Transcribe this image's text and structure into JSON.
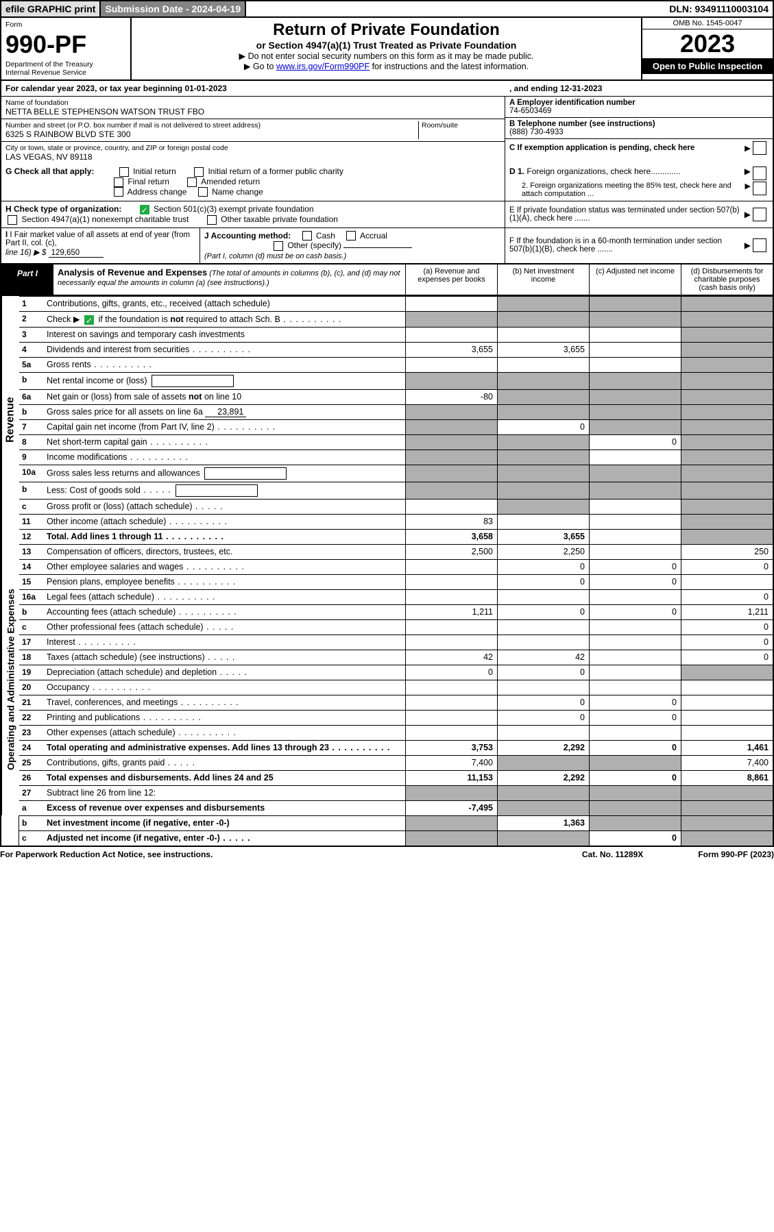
{
  "topbar": {
    "efile": "efile GRAPHIC print",
    "submission": "Submission Date - 2024-04-19",
    "dln": "DLN: 93491110003104"
  },
  "header": {
    "form_word": "Form",
    "form_no": "990-PF",
    "dept": "Department of the Treasury",
    "irs": "Internal Revenue Service",
    "title": "Return of Private Foundation",
    "subtitle": "or Section 4947(a)(1) Trust Treated as Private Foundation",
    "instr1": "▶ Do not enter social security numbers on this form as it may be made public.",
    "instr2_pre": "▶ Go to ",
    "instr2_link": "www.irs.gov/Form990PF",
    "instr2_post": " for instructions and the latest information.",
    "omb": "OMB No. 1545-0047",
    "year": "2023",
    "open": "Open to Public Inspection"
  },
  "calendar": {
    "text_pre": "For calendar year 2023, or tax year beginning ",
    "begin": "01-01-2023",
    "mid": " , and ending ",
    "end": "12-31-2023"
  },
  "foundation": {
    "name_lbl": "Name of foundation",
    "name": "NETTA BELLE STEPHENSON WATSON TRUST FBO",
    "addr_lbl": "Number and street (or P.O. box number if mail is not delivered to street address)",
    "addr": "6325 S RAINBOW BLVD STE 300",
    "room_lbl": "Room/suite",
    "city_lbl": "City or town, state or province, country, and ZIP or foreign postal code",
    "city": "LAS VEGAS, NV  89118",
    "a_lbl": "A Employer identification number",
    "a_val": "74-6503469",
    "b_lbl": "B Telephone number (see instructions)",
    "b_val": "(888) 730-4933",
    "c_lbl": "C If exemption application is pending, check here",
    "d1_lbl": "D 1. Foreign organizations, check here.............",
    "d2_lbl": "2. Foreign organizations meeting the 85% test, check here and attach computation ...",
    "e_lbl": "E  If private foundation status was terminated under section 507(b)(1)(A), check here .......",
    "f_lbl": "F  If the foundation is in a 60-month termination under section 507(b)(1)(B), check here .......",
    "g_lbl": "G Check all that apply:",
    "g_opts": [
      "Initial return",
      "Initial return of a former public charity",
      "Final return",
      "Amended return",
      "Address change",
      "Name change"
    ],
    "h_lbl": "H Check type of organization:",
    "h_opt1": "Section 501(c)(3) exempt private foundation",
    "h_opt2": "Section 4947(a)(1) nonexempt charitable trust",
    "h_opt3": "Other taxable private foundation",
    "i_lbl": "I Fair market value of all assets at end of year (from Part II, col. (c),",
    "i_line": "line 16) ▶ $",
    "i_val": "129,650",
    "j_lbl": "J Accounting method:",
    "j_cash": "Cash",
    "j_accrual": "Accrual",
    "j_other": "Other (specify)",
    "j_note": "(Part I, column (d) must be on cash basis.)"
  },
  "part1": {
    "tab": "Part I",
    "title": "Analysis of Revenue and Expenses",
    "note": " (The total of amounts in columns (b), (c), and (d) may not necessarily equal the amounts in column (a) (see instructions).)",
    "col_a": "(a)   Revenue and expenses per books",
    "col_b": "(b)   Net investment income",
    "col_c": "(c)   Adjusted net income",
    "col_d": "(d)  Disbursements for charitable purposes (cash basis only)"
  },
  "sections": {
    "revenue": "Revenue",
    "expenses": "Operating and Administrative Expenses"
  },
  "rows": [
    {
      "n": "1",
      "lbl": "Contributions, gifts, grants, etc., received (attach schedule)",
      "a": "",
      "b": "g",
      "c": "g",
      "d": "g"
    },
    {
      "n": "2",
      "lbl": "Check ▶ ☑ if the foundation is not required to attach Sch. B",
      "dots": true,
      "a": "g",
      "b": "g",
      "c": "g",
      "d": "g"
    },
    {
      "n": "3",
      "lbl": "Interest on savings and temporary cash investments",
      "a": "",
      "b": "",
      "c": "",
      "d": "g"
    },
    {
      "n": "4",
      "lbl": "Dividends and interest from securities",
      "dots": true,
      "a": "3,655",
      "b": "3,655",
      "c": "",
      "d": "g"
    },
    {
      "n": "5a",
      "lbl": "Gross rents",
      "dots": true,
      "a": "",
      "b": "",
      "c": "",
      "d": "g"
    },
    {
      "n": "b",
      "lbl": "Net rental income or (loss)",
      "box": true,
      "a": "g",
      "b": "g",
      "c": "g",
      "d": "g"
    },
    {
      "n": "6a",
      "lbl": "Net gain or (loss) from sale of assets not on line 10",
      "a": "-80",
      "b": "g",
      "c": "g",
      "d": "g"
    },
    {
      "n": "b",
      "lbl": "Gross sales price for all assets on line 6a",
      "inline": "23,891",
      "a": "g",
      "b": "g",
      "c": "g",
      "d": "g"
    },
    {
      "n": "7",
      "lbl": "Capital gain net income (from Part IV, line 2)",
      "dots": true,
      "a": "g",
      "b": "0",
      "c": "g",
      "d": "g"
    },
    {
      "n": "8",
      "lbl": "Net short-term capital gain",
      "dots": true,
      "a": "g",
      "b": "g",
      "c": "0",
      "d": "g"
    },
    {
      "n": "9",
      "lbl": "Income modifications",
      "dots": true,
      "a": "g",
      "b": "g",
      "c": "",
      "d": "g"
    },
    {
      "n": "10a",
      "lbl": "Gross sales less returns and allowances",
      "box": true,
      "a": "g",
      "b": "g",
      "c": "g",
      "d": "g"
    },
    {
      "n": "b",
      "lbl": "Less: Cost of goods sold",
      "dots5": true,
      "box": true,
      "a": "g",
      "b": "g",
      "c": "g",
      "d": "g"
    },
    {
      "n": "c",
      "lbl": "Gross profit or (loss) (attach schedule)",
      "dots5": true,
      "a": "",
      "b": "g",
      "c": "",
      "d": "g"
    },
    {
      "n": "11",
      "lbl": "Other income (attach schedule)",
      "dots": true,
      "a": "83",
      "b": "",
      "c": "",
      "d": "g"
    },
    {
      "n": "12",
      "lbl": "Total. Add lines 1 through 11",
      "dots": true,
      "bold": true,
      "a": "3,658",
      "b": "3,655",
      "c": "",
      "d": "g"
    },
    {
      "n": "13",
      "lbl": "Compensation of officers, directors, trustees, etc.",
      "a": "2,500",
      "b": "2,250",
      "c": "",
      "d": "250"
    },
    {
      "n": "14",
      "lbl": "Other employee salaries and wages",
      "dots": true,
      "a": "",
      "b": "0",
      "c": "0",
      "d": "0"
    },
    {
      "n": "15",
      "lbl": "Pension plans, employee benefits",
      "dots": true,
      "a": "",
      "b": "0",
      "c": "0",
      "d": ""
    },
    {
      "n": "16a",
      "lbl": "Legal fees (attach schedule)",
      "dots": true,
      "a": "",
      "b": "",
      "c": "",
      "d": "0"
    },
    {
      "n": "b",
      "lbl": "Accounting fees (attach schedule)",
      "dots": true,
      "a": "1,211",
      "b": "0",
      "c": "0",
      "d": "1,211"
    },
    {
      "n": "c",
      "lbl": "Other professional fees (attach schedule)",
      "dots5": true,
      "a": "",
      "b": "",
      "c": "",
      "d": "0"
    },
    {
      "n": "17",
      "lbl": "Interest",
      "dots": true,
      "a": "",
      "b": "",
      "c": "",
      "d": "0"
    },
    {
      "n": "18",
      "lbl": "Taxes (attach schedule) (see instructions)",
      "dots5": true,
      "a": "42",
      "b": "42",
      "c": "",
      "d": "0"
    },
    {
      "n": "19",
      "lbl": "Depreciation (attach schedule) and depletion",
      "dots5": true,
      "a": "0",
      "b": "0",
      "c": "",
      "d": "g"
    },
    {
      "n": "20",
      "lbl": "Occupancy",
      "dots": true,
      "a": "",
      "b": "",
      "c": "",
      "d": ""
    },
    {
      "n": "21",
      "lbl": "Travel, conferences, and meetings",
      "dots": true,
      "a": "",
      "b": "0",
      "c": "0",
      "d": ""
    },
    {
      "n": "22",
      "lbl": "Printing and publications",
      "dots": true,
      "a": "",
      "b": "0",
      "c": "0",
      "d": ""
    },
    {
      "n": "23",
      "lbl": "Other expenses (attach schedule)",
      "dots": true,
      "a": "",
      "b": "",
      "c": "",
      "d": ""
    },
    {
      "n": "24",
      "lbl": "Total operating and administrative expenses. Add lines 13 through 23",
      "dots": true,
      "bold": true,
      "a": "3,753",
      "b": "2,292",
      "c": "0",
      "d": "1,461"
    },
    {
      "n": "25",
      "lbl": "Contributions, gifts, grants paid",
      "dots5": true,
      "a": "7,400",
      "b": "g",
      "c": "g",
      "d": "7,400"
    },
    {
      "n": "26",
      "lbl": "Total expenses and disbursements. Add lines 24 and 25",
      "bold": true,
      "a": "11,153",
      "b": "2,292",
      "c": "0",
      "d": "8,861"
    },
    {
      "n": "27",
      "lbl": "Subtract line 26 from line 12:",
      "a": "g",
      "b": "g",
      "c": "g",
      "d": "g"
    },
    {
      "n": "a",
      "lbl": "Excess of revenue over expenses and disbursements",
      "bold": true,
      "a": "-7,495",
      "b": "g",
      "c": "g",
      "d": "g"
    },
    {
      "n": "b",
      "lbl": "Net investment income (if negative, enter -0-)",
      "bold": true,
      "a": "g",
      "b": "1,363",
      "c": "g",
      "d": "g"
    },
    {
      "n": "c",
      "lbl": "Adjusted net income (if negative, enter -0-)",
      "dots5": true,
      "bold": true,
      "a": "g",
      "b": "g",
      "c": "0",
      "d": "g"
    }
  ],
  "footer": {
    "left": "For Paperwork Reduction Act Notice, see instructions.",
    "mid": "Cat. No. 11289X",
    "right": "Form 990-PF (2023)"
  }
}
